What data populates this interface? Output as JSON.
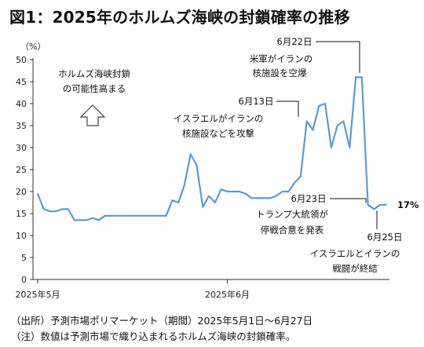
{
  "title": "図1：2025年のホルムズ海峡の封鎖確率の推移",
  "chart_data": {
    "type": "line",
    "unit_label": "（%）",
    "ylim": [
      0,
      50
    ],
    "yticks": [
      0,
      5,
      10,
      15,
      20,
      25,
      30,
      35,
      40,
      45,
      50
    ],
    "x_tick_labels": [
      {
        "label": "2025年5月",
        "x": "2025-05-01"
      },
      {
        "label": "2025年6月",
        "x": "2025-06-01"
      }
    ],
    "xlim": [
      "2025-05-01",
      "2025-06-27"
    ],
    "grid": false,
    "series": [
      {
        "color": "#5b9bd5",
        "points": [
          [
            "2025-05-01",
            19.5
          ],
          [
            "2025-05-02",
            16
          ],
          [
            "2025-05-03",
            15.5
          ],
          [
            "2025-05-04",
            15.5
          ],
          [
            "2025-05-05",
            16
          ],
          [
            "2025-05-06",
            16
          ],
          [
            "2025-05-07",
            13.5
          ],
          [
            "2025-05-08",
            13.5
          ],
          [
            "2025-05-09",
            13.5
          ],
          [
            "2025-05-10",
            14
          ],
          [
            "2025-05-11",
            13.5
          ],
          [
            "2025-05-12",
            14.5
          ],
          [
            "2025-05-13",
            14.5
          ],
          [
            "2025-05-14",
            14.5
          ],
          [
            "2025-05-15",
            14.5
          ],
          [
            "2025-05-16",
            14.5
          ],
          [
            "2025-05-17",
            14.5
          ],
          [
            "2025-05-18",
            14.5
          ],
          [
            "2025-05-19",
            14.5
          ],
          [
            "2025-05-20",
            14.5
          ],
          [
            "2025-05-21",
            14.5
          ],
          [
            "2025-05-22",
            14.5
          ],
          [
            "2025-05-23",
            18
          ],
          [
            "2025-05-24",
            17.5
          ],
          [
            "2025-05-25",
            21.5
          ],
          [
            "2025-05-26",
            28.5
          ],
          [
            "2025-05-27",
            26
          ],
          [
            "2025-05-28",
            16.5
          ],
          [
            "2025-05-29",
            19
          ],
          [
            "2025-05-30",
            17.5
          ],
          [
            "2025-05-31",
            20.5
          ],
          [
            "2025-06-01",
            20
          ],
          [
            "2025-06-02",
            20
          ],
          [
            "2025-06-03",
            20
          ],
          [
            "2025-06-04",
            19.5
          ],
          [
            "2025-06-05",
            18.5
          ],
          [
            "2025-06-06",
            18.5
          ],
          [
            "2025-06-07",
            18.5
          ],
          [
            "2025-06-08",
            18.5
          ],
          [
            "2025-06-09",
            19
          ],
          [
            "2025-06-10",
            20
          ],
          [
            "2025-06-11",
            20
          ],
          [
            "2025-06-12",
            22
          ],
          [
            "2025-06-13",
            23.5
          ],
          [
            "2025-06-14",
            36
          ],
          [
            "2025-06-15",
            34
          ],
          [
            "2025-06-16",
            39.5
          ],
          [
            "2025-06-17",
            40
          ],
          [
            "2025-06-18",
            30
          ],
          [
            "2025-06-19",
            35
          ],
          [
            "2025-06-20",
            36
          ],
          [
            "2025-06-21",
            30
          ],
          [
            "2025-06-22",
            46
          ],
          [
            "2025-06-23",
            46
          ],
          [
            "2025-06-24",
            17
          ],
          [
            "2025-06-25",
            16
          ],
          [
            "2025-06-26",
            17
          ],
          [
            "2025-06-27",
            17
          ]
        ]
      }
    ],
    "end_label": "17%",
    "annotations": [
      {
        "id": "jun22",
        "date": "6月22日",
        "lines": [
          "米軍がイランの",
          "核施設を空爆"
        ]
      },
      {
        "id": "jun13",
        "date": "6月13日",
        "lines": [
          "イスラエルがイランの",
          "核施設などを攻撃"
        ]
      },
      {
        "id": "jun23",
        "date": "6月23日",
        "lines": [
          "トランプ大統領が",
          "停戦合意を発表"
        ]
      },
      {
        "id": "jun25",
        "date": "6月25日",
        "lines": [
          "イスラエルとイランの",
          "戦闘が終結"
        ]
      }
    ],
    "callout": {
      "lines": [
        "ホルムズ海峡封鎖",
        "の可能性高まる"
      ]
    }
  },
  "notes": [
    "（出所）予測市場ポリマーケット（期間）2025年5月1日～6月27日",
    "（注）数値は予測市場で織り込まれるホルムズ海峡の封鎖確率。"
  ]
}
